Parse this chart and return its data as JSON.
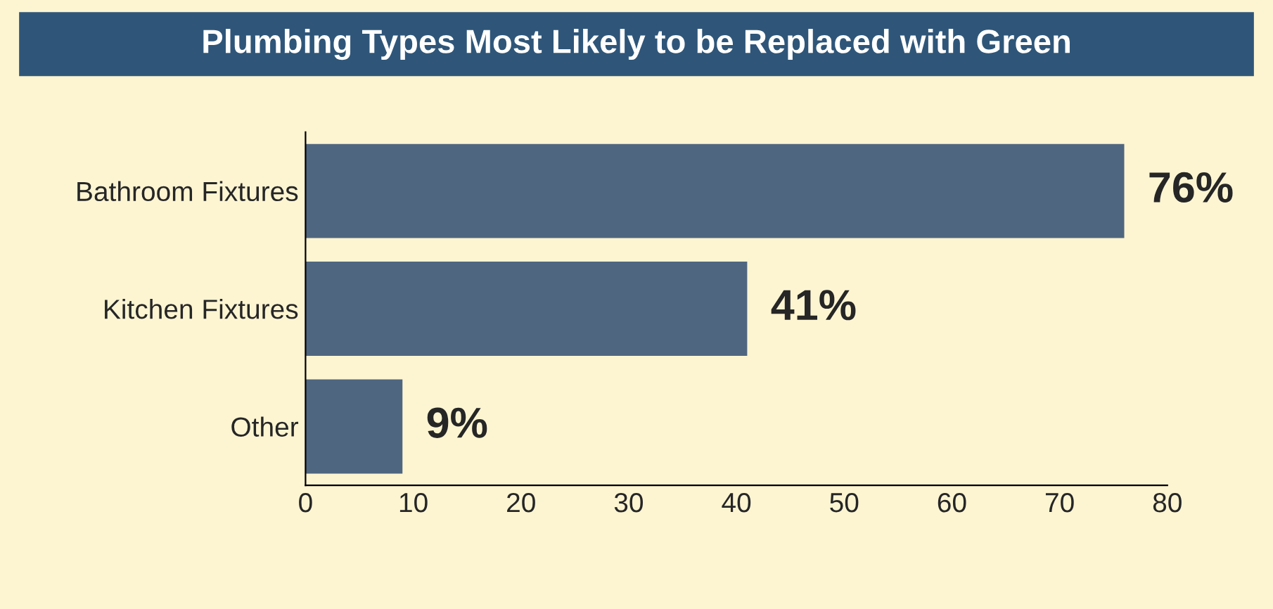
{
  "chart_data": {
    "type": "bar",
    "orientation": "horizontal",
    "title": "Plumbing Types Most Likely to be Replaced with Green",
    "categories": [
      "Bathroom Fixtures",
      "Kitchen Fixtures",
      "Other"
    ],
    "values": [
      76,
      41,
      9
    ],
    "value_labels": [
      "76%",
      "41%",
      "9%"
    ],
    "color": "#4f6680",
    "xlim": [
      0,
      80
    ],
    "xticks": [
      0,
      10,
      20,
      30,
      40,
      50,
      60,
      70,
      80
    ],
    "grid": false,
    "legend": false
  }
}
